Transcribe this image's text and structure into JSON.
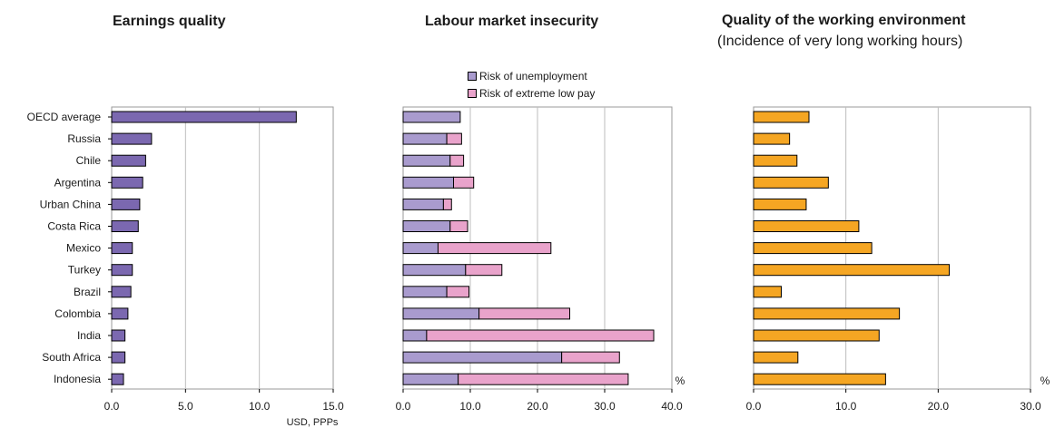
{
  "chart_data": [
    {
      "type": "bar",
      "orientation": "horizontal",
      "title": "Earnings quality",
      "xlabel": "USD, PPPs",
      "categories": [
        "OECD average",
        "Russia",
        "Chile",
        "Argentina",
        "Urban China",
        "Costa Rica",
        "Mexico",
        "Turkey",
        "Brazil",
        "Colombia",
        "India",
        "South Africa",
        "Indonesia"
      ],
      "series": [
        {
          "values": [
            12.5,
            2.7,
            2.3,
            2.1,
            1.9,
            1.8,
            1.4,
            1.4,
            1.3,
            1.1,
            0.9,
            0.9,
            0.8
          ],
          "color": "#7b68b0"
        }
      ],
      "xlim": [
        0,
        15
      ],
      "xticks": [
        "0.0",
        "5.0",
        "10.0",
        "15.0"
      ],
      "grid": "vertical"
    },
    {
      "type": "bar",
      "orientation": "horizontal",
      "stacked": true,
      "title": "Labour market insecurity",
      "unit": "%",
      "categories": [
        "OECD average",
        "Russia",
        "Chile",
        "Argentina",
        "Urban China",
        "Costa Rica",
        "Mexico",
        "Turkey",
        "Brazil",
        "Colombia",
        "India",
        "South Africa",
        "Indonesia"
      ],
      "series": [
        {
          "name": "Risk of unemployment",
          "values": [
            8.5,
            6.5,
            7.0,
            7.5,
            6.0,
            7.0,
            5.2,
            9.3,
            6.5,
            11.3,
            3.5,
            23.6,
            8.2
          ],
          "color": "#a99bce"
        },
        {
          "name": "Risk of extreme low pay",
          "values": [
            0.0,
            2.2,
            2.0,
            3.0,
            1.2,
            2.6,
            16.8,
            5.4,
            3.3,
            13.5,
            33.8,
            8.6,
            25.3
          ],
          "color": "#e9a3cb"
        }
      ],
      "xlim": [
        0,
        40
      ],
      "xticks": [
        "0.0",
        "10.0",
        "20.0",
        "30.0",
        "40.0"
      ],
      "legend": "top",
      "grid": "vertical"
    },
    {
      "type": "bar",
      "orientation": "horizontal",
      "title": "Quality of the working environment",
      "subtitle": "(Incidence of very long working hours)",
      "unit": "%",
      "categories": [
        "OECD average",
        "Russia",
        "Chile",
        "Argentina",
        "Urban China",
        "Costa Rica",
        "Mexico",
        "Turkey",
        "Brazil",
        "Colombia",
        "India",
        "South Africa",
        "Indonesia"
      ],
      "series": [
        {
          "values": [
            6.0,
            3.9,
            4.7,
            8.1,
            5.7,
            11.4,
            12.8,
            21.2,
            3.0,
            15.8,
            13.6,
            4.8,
            14.3
          ],
          "color": "#f5a623"
        }
      ],
      "xlim": [
        0,
        30
      ],
      "xticks": [
        "0.0",
        "10.0",
        "20.0",
        "30.0"
      ],
      "grid": "vertical"
    }
  ]
}
